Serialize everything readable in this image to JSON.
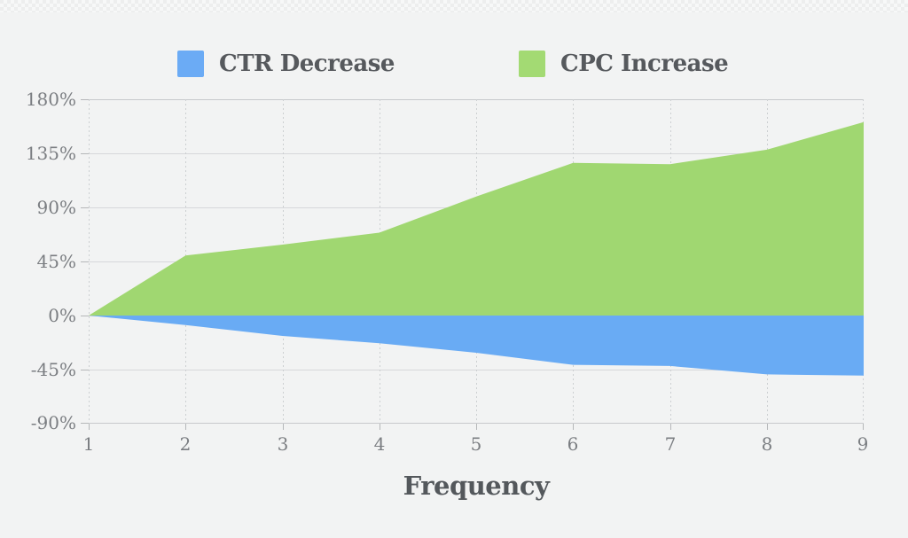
{
  "legend": {
    "items": [
      {
        "label": "CTR Decrease",
        "color": "#6babf5"
      },
      {
        "label": "CPC Increase",
        "color": "#a3da73"
      }
    ]
  },
  "chart_data": {
    "type": "area",
    "x": [
      1,
      2,
      3,
      4,
      5,
      6,
      7,
      8,
      9
    ],
    "categories": [
      "1",
      "2",
      "3",
      "4",
      "5",
      "6",
      "7",
      "8",
      "9"
    ],
    "xlabel": "Frequency",
    "ylabel": "",
    "ylim": [
      -90,
      180
    ],
    "y_ticks": [
      180,
      135,
      90,
      45,
      0,
      -45,
      -90
    ],
    "y_tick_labels": [
      "180%",
      "135%",
      "90%",
      "45%",
      "0%",
      "-45%",
      "-90%"
    ],
    "grid": true,
    "legend_position": "top",
    "background": "#f2f3f3",
    "series": [
      {
        "name": "CPC Increase",
        "color": "#a0d771",
        "values": [
          0,
          50,
          59,
          69,
          99,
          127,
          126,
          138,
          161
        ]
      },
      {
        "name": "CTR Decrease",
        "color": "#69abf4",
        "values": [
          0,
          -8,
          -17,
          -23,
          -31,
          -41,
          -42,
          -49,
          -50
        ]
      }
    ]
  }
}
